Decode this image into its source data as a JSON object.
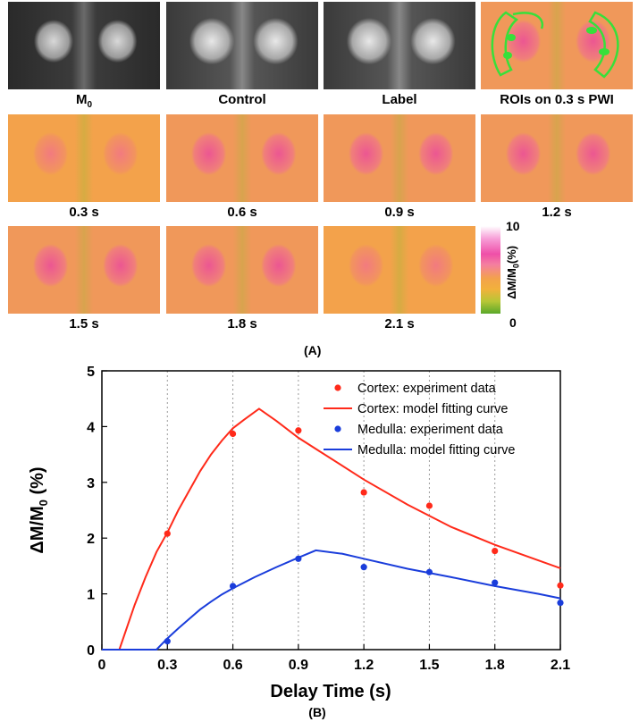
{
  "figure": {
    "panel_a_label": "(A)",
    "panel_b_label": "(B)",
    "row1_labels": [
      "M0",
      "Control",
      "Label",
      "ROIs on 0.3 s PWI"
    ],
    "row2_labels": [
      "0.3 s",
      "0.6 s",
      "0.9 s",
      "1.2 s"
    ],
    "row3_labels": [
      "1.5 s",
      "1.8 s",
      "2.1 s"
    ],
    "colorbar": {
      "max": "10",
      "min": "0",
      "title": "ΔM/M0(%)"
    }
  },
  "chart_data": {
    "type": "line",
    "xlabel": "Delay Time (s)",
    "ylabel": "ΔM/M0 (%)",
    "xlim": [
      0,
      2.1
    ],
    "ylim": [
      0,
      5
    ],
    "xticks": [
      "0",
      "0.3",
      "0.6",
      "0.9",
      "1.2",
      "1.5",
      "1.8",
      "2.1"
    ],
    "yticks": [
      "0",
      "1",
      "2",
      "3",
      "4",
      "5"
    ],
    "grid": "x-dotted",
    "legend_position": "top-right",
    "series": [
      {
        "name": "Cortex: experiment data",
        "kind": "scatter",
        "color": "#ff2a1a",
        "x": [
          0.3,
          0.6,
          0.9,
          1.2,
          1.5,
          1.8,
          2.1
        ],
        "y": [
          2.08,
          3.87,
          3.93,
          2.82,
          2.58,
          1.77,
          1.15
        ]
      },
      {
        "name": "Cortex: model fitting curve",
        "kind": "line",
        "color": "#ff2a1a",
        "x": [
          0,
          0.08,
          0.15,
          0.2,
          0.25,
          0.3,
          0.35,
          0.4,
          0.45,
          0.5,
          0.55,
          0.6,
          0.65,
          0.72,
          0.8,
          0.9,
          1.0,
          1.2,
          1.4,
          1.6,
          1.8,
          2.0,
          2.1
        ],
        "y": [
          0,
          0,
          0.8,
          1.3,
          1.75,
          2.1,
          2.5,
          2.85,
          3.2,
          3.5,
          3.75,
          3.97,
          4.12,
          4.32,
          4.1,
          3.8,
          3.55,
          3.05,
          2.6,
          2.2,
          1.88,
          1.6,
          1.46
        ]
      },
      {
        "name": "Medulla: experiment data",
        "kind": "scatter",
        "color": "#1a3ddb",
        "x": [
          0.3,
          0.6,
          0.9,
          1.2,
          1.5,
          1.8,
          2.1
        ],
        "y": [
          0.15,
          1.14,
          1.63,
          1.48,
          1.39,
          1.2,
          0.84
        ]
      },
      {
        "name": "Medulla: model fitting curve",
        "kind": "line",
        "color": "#1a3ddb",
        "x": [
          0,
          0.25,
          0.3,
          0.35,
          0.4,
          0.45,
          0.5,
          0.55,
          0.6,
          0.7,
          0.8,
          0.9,
          0.98,
          1.1,
          1.2,
          1.4,
          1.6,
          1.8,
          2.0,
          2.1
        ],
        "y": [
          0,
          0,
          0.2,
          0.38,
          0.55,
          0.72,
          0.86,
          0.99,
          1.1,
          1.3,
          1.48,
          1.65,
          1.78,
          1.72,
          1.63,
          1.45,
          1.3,
          1.14,
          1.0,
          0.92
        ]
      }
    ]
  }
}
